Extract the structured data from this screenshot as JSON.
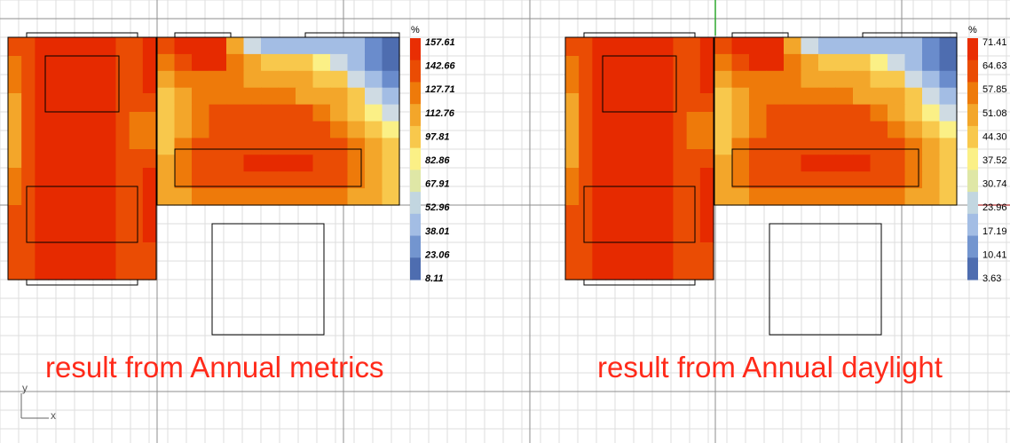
{
  "viewport": {
    "background": "#ffffff",
    "axis_x_label": "x",
    "axis_y_label": "y"
  },
  "chart_data": [
    {
      "type": "heatmap",
      "title": "",
      "caption": "result from Annual metrics",
      "legend": {
        "title": "%",
        "placement": "right",
        "ticks": [
          "157.61",
          "142.66",
          "127.71",
          "112.76",
          "97.81",
          "82.86",
          "67.91",
          "52.96",
          "38.01",
          "23.06",
          "8.11"
        ],
        "range": [
          8.11,
          157.61
        ],
        "label_style": "bold-italic"
      }
    },
    {
      "type": "heatmap",
      "title": "",
      "caption": "result from Annual daylight",
      "legend": {
        "title": "%",
        "placement": "right",
        "ticks": [
          "71.41",
          "64.63",
          "57.85",
          "51.08",
          "44.30",
          "37.52",
          "30.74",
          "23.96",
          "17.19",
          "10.41",
          "3.63"
        ],
        "range": [
          3.63,
          71.41
        ],
        "label_style": "normal"
      }
    }
  ],
  "grids": {
    "left_room": {
      "rows": [
        [
          0.85,
          0.85,
          1,
          1,
          1,
          1,
          1,
          1,
          0.85,
          0.85,
          1
        ],
        [
          0.75,
          0.85,
          1,
          1,
          1,
          1,
          1,
          1,
          0.85,
          0.85,
          1
        ],
        [
          0.75,
          0.85,
          1,
          1,
          1,
          1,
          1,
          1,
          0.85,
          0.85,
          1
        ],
        [
          0.7,
          0.85,
          1,
          1,
          1,
          1,
          1,
          1,
          0.85,
          0.85,
          0.85
        ],
        [
          0.65,
          0.85,
          0.95,
          0.95,
          0.95,
          0.95,
          0.95,
          0.95,
          0.85,
          0.75,
          0.8
        ],
        [
          0.65,
          0.85,
          0.95,
          0.95,
          0.95,
          0.95,
          0.95,
          0.95,
          0.85,
          0.75,
          0.8
        ],
        [
          0.7,
          0.85,
          1,
          1,
          1,
          1,
          1,
          1,
          0.85,
          0.85,
          0.85
        ],
        [
          0.75,
          0.85,
          1,
          1,
          1,
          1,
          1,
          1,
          0.85,
          0.85,
          1
        ],
        [
          0.75,
          0.85,
          1,
          1,
          1,
          1,
          1,
          1,
          0.85,
          0.85,
          1
        ],
        [
          0.85,
          0.85,
          1,
          1,
          1,
          1,
          1,
          1,
          0.85,
          0.85,
          1
        ],
        [
          0.85,
          0.85,
          1,
          1,
          1,
          1,
          1,
          1,
          0.85,
          0.85,
          1
        ],
        [
          0.85,
          0.85,
          1,
          1,
          1,
          1,
          1,
          1,
          0.85,
          0.85,
          0.85
        ],
        [
          0.85,
          0.85,
          1,
          1,
          1,
          1,
          1,
          1,
          0.85,
          0.85,
          0.85
        ]
      ]
    },
    "right_room": {
      "rows": [
        [
          0.88,
          1,
          1,
          1,
          0.72,
          0.33,
          0.25,
          0.25,
          0.25,
          0.25,
          0.18,
          0.18,
          0.08,
          0.03
        ],
        [
          0.8,
          0.92,
          0.95,
          0.95,
          0.8,
          0.62,
          0.55,
          0.55,
          0.55,
          0.45,
          0.38,
          0.25,
          0.08,
          0.03
        ],
        [
          0.62,
          0.8,
          0.82,
          0.82,
          0.78,
          0.72,
          0.65,
          0.62,
          0.62,
          0.6,
          0.5,
          0.38,
          0.18,
          0.15
        ],
        [
          0.55,
          0.72,
          0.78,
          0.82,
          0.82,
          0.8,
          0.78,
          0.75,
          0.72,
          0.72,
          0.65,
          0.5,
          0.3,
          0.18
        ],
        [
          0.55,
          0.72,
          0.82,
          0.85,
          0.85,
          0.85,
          0.85,
          0.85,
          0.85,
          0.8,
          0.72,
          0.6,
          0.42,
          0.3
        ],
        [
          0.55,
          0.72,
          0.82,
          0.88,
          0.88,
          0.88,
          0.88,
          0.88,
          0.88,
          0.85,
          0.82,
          0.72,
          0.55,
          0.45
        ],
        [
          0.6,
          0.75,
          0.85,
          0.9,
          0.92,
          0.92,
          0.92,
          0.92,
          0.92,
          0.9,
          0.85,
          0.78,
          0.62,
          0.55
        ],
        [
          0.62,
          0.78,
          0.88,
          0.92,
          0.92,
          0.95,
          0.95,
          0.95,
          0.95,
          0.92,
          0.88,
          0.82,
          0.65,
          0.58
        ],
        [
          0.62,
          0.78,
          0.85,
          0.88,
          0.88,
          0.88,
          0.88,
          0.88,
          0.88,
          0.88,
          0.85,
          0.8,
          0.65,
          0.58
        ],
        [
          0.65,
          0.72,
          0.8,
          0.8,
          0.8,
          0.8,
          0.8,
          0.8,
          0.8,
          0.8,
          0.78,
          0.72,
          0.62,
          0.58
        ]
      ]
    },
    "colors": [
      "#4e6db0",
      "#6a8ccc",
      "#a3bde4",
      "#cfdbe3",
      "#fbf086",
      "#f8c84c",
      "#f3a62a",
      "#ee7a0a",
      "#ea4c04",
      "#e62a00"
    ]
  }
}
